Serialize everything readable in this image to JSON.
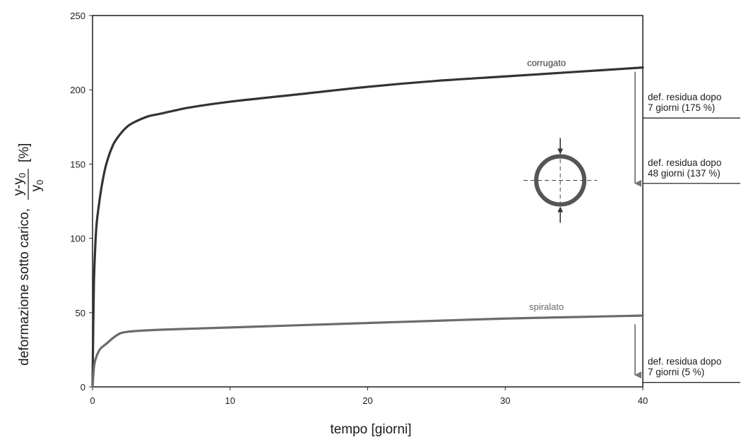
{
  "chart_data": {
    "type": "line",
    "title": "",
    "xlabel": "tempo  [giorni]",
    "ylabel": {
      "prefix": "deformazione sotto carico,",
      "numerator": "y-y",
      "numerator_sub": "0",
      "denominator": "y",
      "denominator_sub": "0",
      "unit": "[%]"
    },
    "xlim": [
      0,
      40
    ],
    "ylim": [
      0,
      250
    ],
    "x_ticks": [
      0,
      10,
      20,
      30,
      40
    ],
    "y_ticks": [
      0,
      50,
      100,
      150,
      200,
      250
    ],
    "grid": false,
    "legend": "none",
    "series": [
      {
        "name": "corrugato",
        "color": "#333333",
        "x": [
          0,
          0.05,
          0.1,
          0.2,
          0.3,
          0.5,
          0.7,
          1,
          1.5,
          2,
          2.5,
          3,
          4,
          5,
          7,
          10,
          15,
          20,
          25,
          30,
          35,
          40
        ],
        "y": [
          0,
          40,
          70,
          95,
          110,
          125,
          137,
          150,
          163,
          170,
          175,
          178,
          182,
          184,
          188,
          192,
          197,
          202,
          206,
          209,
          212,
          215
        ]
      },
      {
        "name": "spiralato",
        "color": "#6b6b6b",
        "x": [
          0,
          0.1,
          0.2,
          0.4,
          0.6,
          1,
          1.5,
          2,
          2.5,
          3,
          5,
          10,
          15,
          20,
          25,
          30,
          35,
          40
        ],
        "y": [
          0,
          13,
          18,
          23,
          26,
          29,
          33,
          36,
          37,
          37.5,
          38.5,
          40,
          41.5,
          43,
          44.5,
          46,
          47,
          48
        ]
      }
    ],
    "annotations": [
      {
        "text": [
          "def. residua dopo",
          "7 giorni (175 %)"
        ],
        "level": 181,
        "arrow_from": 215,
        "arrow_to": 137
      },
      {
        "text": [
          "def. residua dopo",
          "48 giorni (137 %)"
        ],
        "level": 137
      },
      {
        "text": [
          "def. residua dopo",
          "7 giorni (5 %)"
        ],
        "level": 3,
        "arrow_from": 45,
        "arrow_to": 8
      }
    ],
    "inset": {
      "icon": "pipe-cross-section-icon",
      "center": [
        34,
        139
      ],
      "color": "#555555"
    }
  }
}
